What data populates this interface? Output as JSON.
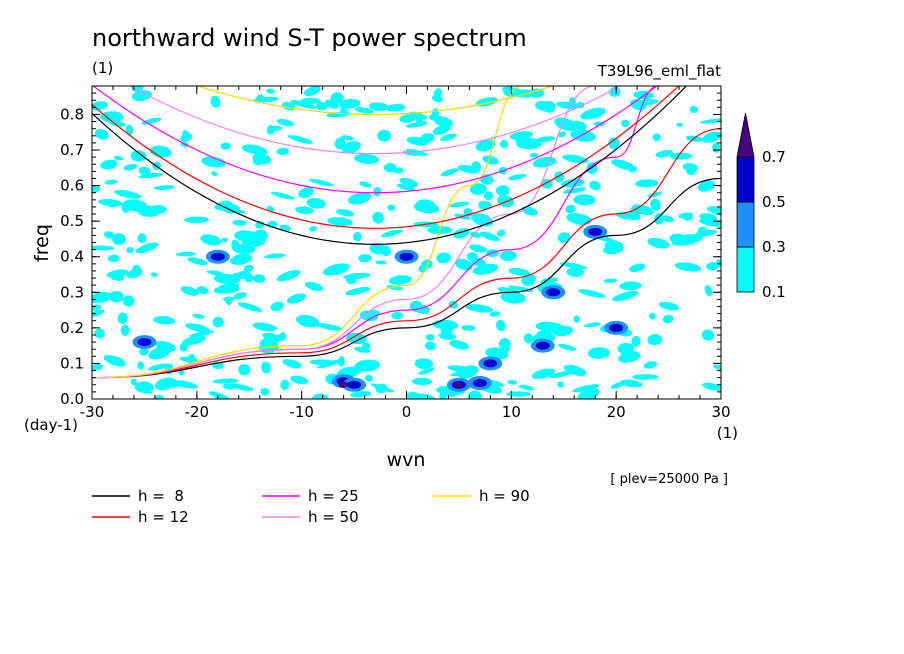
{
  "chart_data": {
    "type": "heatmap",
    "title": "northward wind S-T power spectrum",
    "title_unit": "(1)",
    "run_label": "T39L96_eml_flat",
    "xlabel": "wvn",
    "ylabel": "freq",
    "x_unit": "(1)",
    "y_unit": "(day-1)",
    "level_note": "[ plev=25000 Pa ]",
    "xlim": [
      -30,
      30
    ],
    "ylim": [
      0,
      0.88
    ],
    "x_ticks": [
      -30,
      -20,
      -10,
      0,
      10,
      20,
      30
    ],
    "x_tick_labels": [
      "-30",
      "-20",
      "-10",
      "0",
      "10",
      "20",
      "30"
    ],
    "y_ticks": [
      0,
      0.1,
      0.2,
      0.3,
      0.4,
      0.5,
      0.6,
      0.7,
      0.8
    ],
    "y_tick_labels": [
      "0.0",
      "0.1",
      "0.2",
      "0.3",
      "0.4",
      "0.5",
      "0.6",
      "0.7",
      "0.8"
    ],
    "grid": false,
    "legend_position": "bottom-left",
    "colorbar": {
      "levels": [
        0.1,
        0.3,
        0.5,
        0.7
      ],
      "labels": [
        "0.1",
        "0.3",
        "0.5",
        "0.7"
      ],
      "colors": [
        "#00ffff",
        "#1e90ff",
        "#0000cd",
        "#4b0082"
      ],
      "extend": "max"
    },
    "dispersion_curves": [
      {
        "label": "h =  8",
        "color": "#000000",
        "sample": [
          [
            -30,
            0.06
          ],
          [
            -10,
            0.12
          ],
          [
            0,
            0.2
          ],
          [
            10,
            0.3
          ],
          [
            20,
            0.46
          ],
          [
            30,
            0.62
          ]
        ]
      },
      {
        "label": "h = 12",
        "color": "#ff0000",
        "sample": [
          [
            -30,
            0.06
          ],
          [
            -10,
            0.13
          ],
          [
            0,
            0.22
          ],
          [
            10,
            0.34
          ],
          [
            20,
            0.52
          ],
          [
            30,
            0.76
          ]
        ]
      },
      {
        "label": "h = 25",
        "color": "#ff00ff",
        "sample": [
          [
            -30,
            0.06
          ],
          [
            -10,
            0.14
          ],
          [
            0,
            0.25
          ],
          [
            10,
            0.42
          ],
          [
            20,
            0.68
          ],
          [
            24,
            0.88
          ]
        ]
      },
      {
        "label": "h = 50",
        "color": "#ee82ee",
        "sample": [
          [
            -30,
            0.06
          ],
          [
            -10,
            0.14
          ],
          [
            0,
            0.28
          ],
          [
            10,
            0.52
          ],
          [
            18,
            0.88
          ]
        ]
      },
      {
        "label": "h = 90",
        "color": "#ffd700",
        "sample": [
          [
            -30,
            0.06
          ],
          [
            -10,
            0.15
          ],
          [
            0,
            0.32
          ],
          [
            6,
            0.6
          ],
          [
            11,
            0.88
          ]
        ]
      }
    ],
    "hump_curves": [
      {
        "h": "8",
        "color": "#000000",
        "min_freq": 0.435
      },
      {
        "h": "12",
        "color": "#ff0000",
        "min_freq": 0.48
      },
      {
        "h": "25",
        "color": "#ff00ff",
        "min_freq": 0.58
      },
      {
        "h": "50",
        "color": "#ee82ee",
        "min_freq": 0.69
      },
      {
        "h": "90",
        "color": "#ffd700",
        "min_freq": 0.8
      }
    ]
  }
}
